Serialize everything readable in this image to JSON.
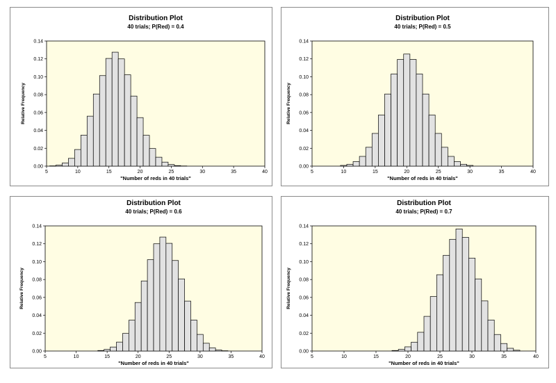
{
  "colors": {
    "plot_bg": "#fffde3",
    "bar_fill": "#e2e2e2",
    "bar_stroke": "#000000"
  },
  "chart_data": [
    {
      "type": "bar",
      "title": "Distribution Plot",
      "subtitle": "40 trials; P(Red) = 0.4",
      "xlabel": "\"Number of reds in 40 trials\"",
      "ylabel": "Relative Frequency",
      "xlim": [
        5,
        40
      ],
      "ylim": [
        0,
        0.14
      ],
      "xticks": [
        5,
        10,
        15,
        20,
        25,
        30,
        35,
        40
      ],
      "xtick_labels": [
        "5",
        "10",
        "15",
        "20",
        "25",
        "30",
        "35",
        "40"
      ],
      "yticks": [
        0,
        0.02,
        0.04,
        0.06,
        0.08,
        0.1,
        0.12,
        0.14
      ],
      "ytick_labels": [
        "0.00",
        "0.02",
        "0.04",
        "0.06",
        "0.08",
        "0.10",
        "0.12",
        "0.14"
      ],
      "x": [
        6,
        7,
        8,
        9,
        10,
        11,
        12,
        13,
        14,
        15,
        16,
        17,
        18,
        19,
        20,
        21,
        22,
        23,
        24,
        25,
        26,
        27
      ],
      "values": [
        0.0003,
        0.0012,
        0.0035,
        0.0087,
        0.0186,
        0.0347,
        0.0559,
        0.0807,
        0.1013,
        0.1205,
        0.1275,
        0.12,
        0.1022,
        0.0784,
        0.0543,
        0.0345,
        0.0197,
        0.01,
        0.0045,
        0.0018,
        0.0006,
        0.0002
      ]
    },
    {
      "type": "bar",
      "title": "Distribution Plot",
      "subtitle": "40 trials; P(Red) = 0.5",
      "xlabel": "\"Number of reds in 40 trials\"",
      "ylabel": "Relative Frequency",
      "xlim": [
        5,
        40
      ],
      "ylim": [
        0,
        0.14
      ],
      "xticks": [
        5,
        10,
        15,
        20,
        25,
        30,
        35,
        40
      ],
      "xtick_labels": [
        "5",
        "10",
        "15",
        "20",
        "25",
        "30",
        "35",
        "40"
      ],
      "yticks": [
        0,
        0.02,
        0.04,
        0.06,
        0.08,
        0.1,
        0.12,
        0.14
      ],
      "ytick_labels": [
        "0.00",
        "0.02",
        "0.04",
        "0.06",
        "0.08",
        "0.10",
        "0.12",
        "0.14"
      ],
      "x": [
        10,
        11,
        12,
        13,
        14,
        15,
        16,
        17,
        18,
        19,
        20,
        21,
        22,
        23,
        24,
        25,
        26,
        27,
        28,
        29,
        30
      ],
      "values": [
        0.0008,
        0.0021,
        0.0051,
        0.0109,
        0.0211,
        0.0366,
        0.0572,
        0.0807,
        0.1031,
        0.1194,
        0.1254,
        0.1194,
        0.1031,
        0.0807,
        0.0572,
        0.0366,
        0.0211,
        0.0109,
        0.0051,
        0.0021,
        0.0008
      ]
    },
    {
      "type": "bar",
      "title": "Distribution Plot",
      "subtitle": "40 trials; P(Red) = 0.6",
      "xlabel": "\"Number of reds in 40 trials\"",
      "ylabel": "Relative Frequency",
      "xlim": [
        5,
        40
      ],
      "ylim": [
        0,
        0.14
      ],
      "xticks": [
        5,
        10,
        15,
        20,
        25,
        30,
        35,
        40
      ],
      "xtick_labels": [
        "5",
        "10",
        "15",
        "20",
        "25",
        "30",
        "35",
        "40"
      ],
      "yticks": [
        0,
        0.02,
        0.04,
        0.06,
        0.08,
        0.1,
        0.12,
        0.14
      ],
      "ytick_labels": [
        "0.00",
        "0.02",
        "0.04",
        "0.06",
        "0.08",
        "0.10",
        "0.12",
        "0.14"
      ],
      "x": [
        14,
        15,
        16,
        17,
        18,
        19,
        20,
        21,
        22,
        23,
        24,
        25,
        26,
        27,
        28,
        29,
        30,
        31,
        32,
        33,
        34
      ],
      "values": [
        0.0006,
        0.0018,
        0.0045,
        0.01,
        0.0197,
        0.0345,
        0.0543,
        0.0784,
        0.1022,
        0.12,
        0.1275,
        0.1205,
        0.1013,
        0.0807,
        0.0559,
        0.0347,
        0.0186,
        0.0087,
        0.0035,
        0.0012,
        0.0003
      ]
    },
    {
      "type": "bar",
      "title": "Distribution Plot",
      "subtitle": "40 trials; P(Red) = 0.7",
      "xlabel": "\"Number of reds in 40 trials\"",
      "ylabel": "Relative Frequency",
      "xlim": [
        5,
        40
      ],
      "ylim": [
        0,
        0.14
      ],
      "xticks": [
        5,
        10,
        15,
        20,
        25,
        30,
        35,
        40
      ],
      "xtick_labels": [
        "5",
        "10",
        "15",
        "20",
        "25",
        "30",
        "35",
        "40"
      ],
      "yticks": [
        0,
        0.02,
        0.04,
        0.06,
        0.08,
        0.1,
        0.12,
        0.14
      ],
      "ytick_labels": [
        "0.00",
        "0.02",
        "0.04",
        "0.06",
        "0.08",
        "0.10",
        "0.12",
        "0.14"
      ],
      "x": [
        18,
        19,
        20,
        21,
        22,
        23,
        24,
        25,
        26,
        27,
        28,
        29,
        30,
        31,
        32,
        33,
        34,
        35,
        36,
        37
      ],
      "values": [
        0.0006,
        0.0019,
        0.0047,
        0.0099,
        0.021,
        0.0388,
        0.061,
        0.0854,
        0.1071,
        0.125,
        0.1366,
        0.1272,
        0.104,
        0.0807,
        0.0561,
        0.0347,
        0.0185,
        0.0084,
        0.0031,
        0.0009
      ]
    }
  ]
}
